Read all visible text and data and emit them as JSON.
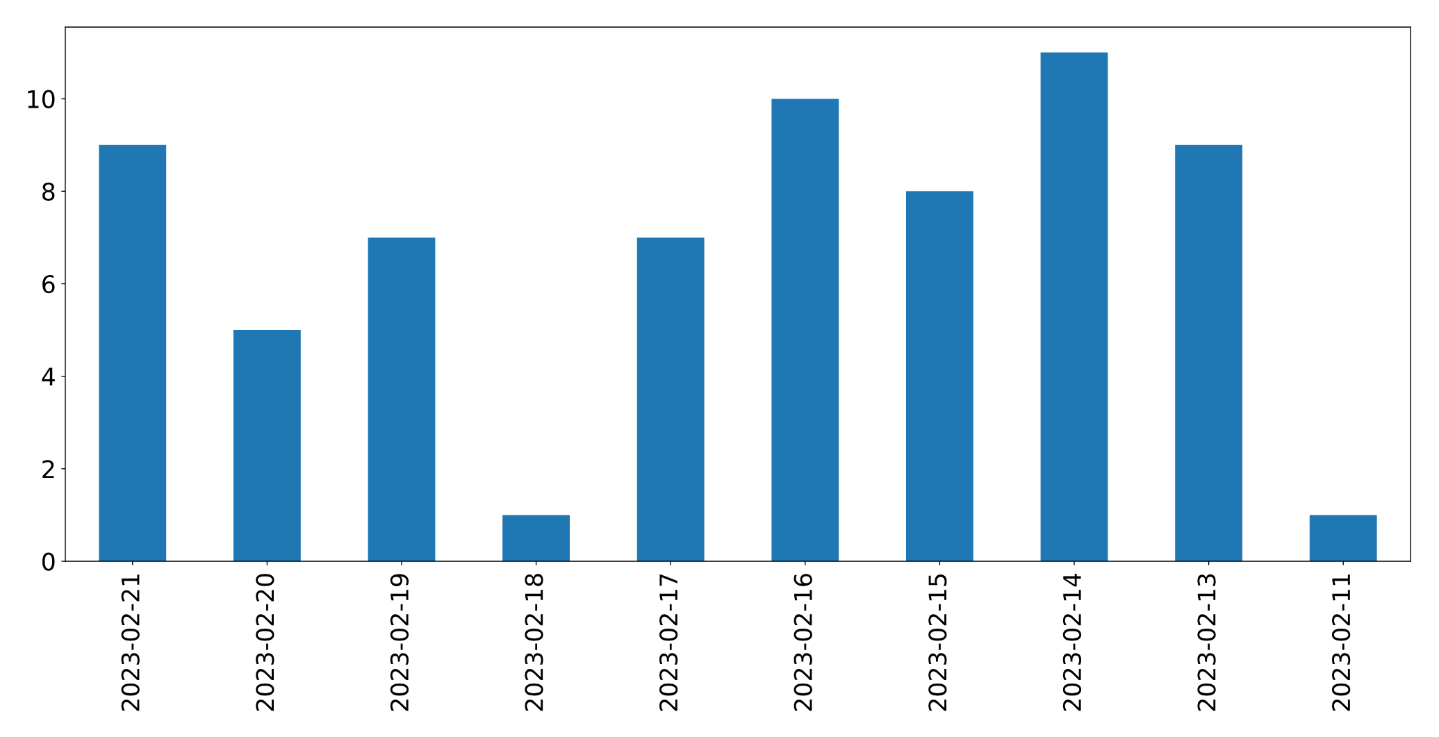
{
  "chart_data": {
    "type": "bar",
    "categories": [
      "2023-02-21",
      "2023-02-20",
      "2023-02-19",
      "2023-02-18",
      "2023-02-17",
      "2023-02-16",
      "2023-02-15",
      "2023-02-14",
      "2023-02-13",
      "2023-02-11"
    ],
    "values": [
      9,
      5,
      7,
      1,
      7,
      10,
      8,
      11,
      9,
      1
    ],
    "color": "#1f77b4",
    "ylim": [
      0,
      11.55
    ],
    "yticks": [
      0,
      2,
      4,
      6,
      8,
      10
    ],
    "grid": false
  }
}
